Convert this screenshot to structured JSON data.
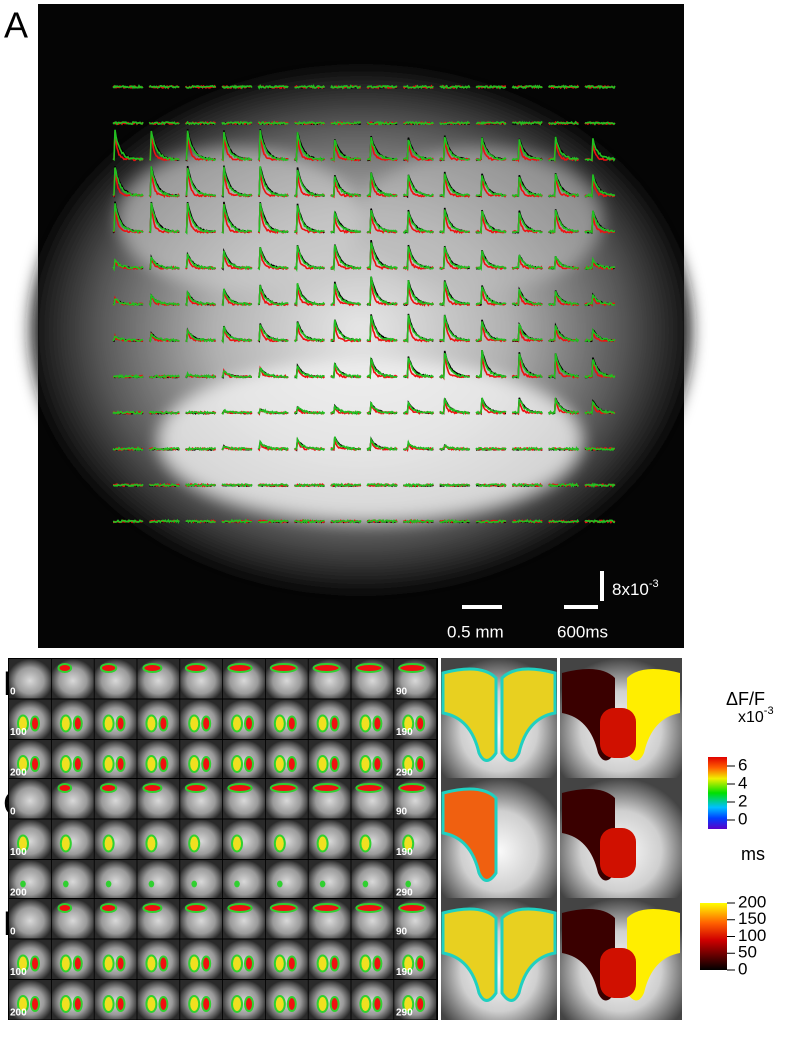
{
  "panel_a": {
    "label": "A",
    "scale_bars": {
      "amplitude": {
        "base": "8x10",
        "exponent": "-3"
      },
      "length": "0.5 mm",
      "time": "600ms"
    }
  },
  "map_panels": [
    {
      "label": "B",
      "frame_labels": [
        [
          0,
          90
        ],
        [
          100,
          190
        ],
        [
          200,
          290
        ]
      ]
    },
    {
      "label": "C",
      "frame_labels": [
        [
          0,
          90
        ],
        [
          100,
          190
        ],
        [
          200,
          290
        ]
      ]
    },
    {
      "label": "D",
      "frame_labels": [
        [
          0,
          90
        ],
        [
          100,
          190
        ],
        [
          200,
          290
        ]
      ]
    }
  ],
  "colorbars": [
    {
      "title": "ΔF/F",
      "unit": {
        "base": "x10",
        "exponent": "-3"
      },
      "range": [
        -1,
        7
      ],
      "ticks": [
        6,
        4,
        2,
        0
      ]
    },
    {
      "title": "ms",
      "range": [
        0,
        200
      ],
      "ticks": [
        200,
        150,
        100,
        50,
        0
      ]
    }
  ]
}
